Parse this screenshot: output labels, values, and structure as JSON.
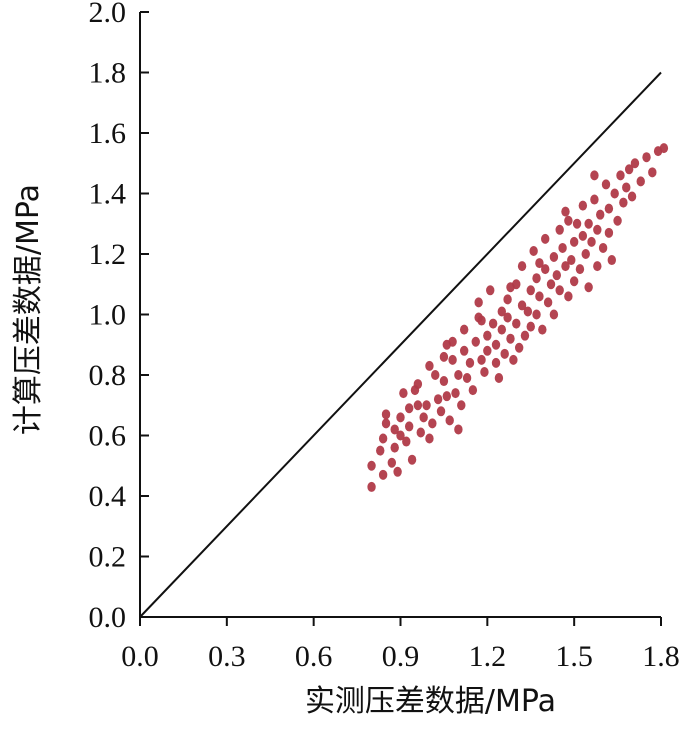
{
  "chart_data": {
    "type": "scatter",
    "xlabel": "实测压差数据/MPa",
    "ylabel": "计算压差数据/MPa",
    "xlim": [
      0,
      1.8
    ],
    "ylim": [
      0,
      2.0
    ],
    "x_ticks": [
      "0.0",
      "0.3",
      "0.6",
      "0.9",
      "1.2",
      "1.5",
      "1.8"
    ],
    "y_ticks": [
      "0.0",
      "0.2",
      "0.4",
      "0.6",
      "0.8",
      "1.0",
      "1.2",
      "1.4",
      "1.6",
      "1.8",
      "2.0"
    ],
    "reference_line": {
      "x": [
        0,
        1.8
      ],
      "y": [
        0,
        1.8
      ]
    },
    "point_color": "#b03a48",
    "grid": false,
    "series": [
      {
        "points": [
          [
            0.8,
            0.43
          ],
          [
            0.8,
            0.5
          ],
          [
            0.83,
            0.55
          ],
          [
            0.84,
            0.47
          ],
          [
            0.84,
            0.59
          ],
          [
            0.85,
            0.64
          ],
          [
            0.85,
            0.67
          ],
          [
            0.87,
            0.51
          ],
          [
            0.88,
            0.56
          ],
          [
            0.89,
            0.48
          ],
          [
            0.9,
            0.6
          ],
          [
            0.9,
            0.66
          ],
          [
            0.91,
            0.74
          ],
          [
            0.92,
            0.58
          ],
          [
            0.93,
            0.63
          ],
          [
            0.93,
            0.69
          ],
          [
            0.94,
            0.52
          ],
          [
            0.95,
            0.75
          ],
          [
            0.96,
            0.77
          ],
          [
            0.97,
            0.61
          ],
          [
            0.98,
            0.66
          ],
          [
            0.99,
            0.7
          ],
          [
            1.0,
            0.83
          ],
          [
            1.0,
            0.59
          ],
          [
            1.01,
            0.64
          ],
          [
            1.02,
            0.8
          ],
          [
            1.03,
            0.72
          ],
          [
            1.04,
            0.68
          ],
          [
            1.05,
            0.78
          ],
          [
            1.05,
            0.86
          ],
          [
            1.06,
            0.73
          ],
          [
            1.07,
            0.65
          ],
          [
            1.08,
            0.85
          ],
          [
            1.08,
            0.91
          ],
          [
            1.09,
            0.74
          ],
          [
            1.1,
            0.8
          ],
          [
            1.1,
            0.62
          ],
          [
            1.11,
            0.7
          ],
          [
            1.12,
            0.88
          ],
          [
            1.12,
            0.95
          ],
          [
            1.13,
            0.79
          ],
          [
            1.14,
            0.84
          ],
          [
            1.15,
            0.75
          ],
          [
            1.16,
            0.91
          ],
          [
            1.17,
            0.99
          ],
          [
            1.17,
            1.04
          ],
          [
            1.18,
            0.85
          ],
          [
            1.19,
            0.81
          ],
          [
            1.2,
            0.93
          ],
          [
            1.2,
            0.88
          ],
          [
            1.21,
            1.08
          ],
          [
            1.22,
            0.97
          ],
          [
            1.23,
            0.84
          ],
          [
            1.23,
            0.9
          ],
          [
            1.24,
            0.79
          ],
          [
            1.25,
            1.01
          ],
          [
            1.25,
            0.95
          ],
          [
            1.26,
            0.87
          ],
          [
            1.27,
            1.05
          ],
          [
            1.27,
            0.99
          ],
          [
            1.28,
            0.92
          ],
          [
            1.29,
            0.85
          ],
          [
            1.3,
            1.1
          ],
          [
            1.3,
            0.97
          ],
          [
            1.31,
            0.89
          ],
          [
            1.32,
            1.03
          ],
          [
            1.32,
            1.16
          ],
          [
            1.33,
            0.93
          ],
          [
            1.34,
            1.01
          ],
          [
            1.35,
            1.08
          ],
          [
            1.35,
            0.96
          ],
          [
            1.36,
            1.21
          ],
          [
            1.37,
            1.12
          ],
          [
            1.37,
            1.0
          ],
          [
            1.38,
            1.06
          ],
          [
            1.39,
            0.95
          ],
          [
            1.4,
            1.15
          ],
          [
            1.4,
            1.25
          ],
          [
            1.41,
            1.04
          ],
          [
            1.42,
            1.1
          ],
          [
            1.43,
            1.19
          ],
          [
            1.43,
            1.0
          ],
          [
            1.44,
            1.13
          ],
          [
            1.45,
            1.28
          ],
          [
            1.45,
            1.08
          ],
          [
            1.46,
            1.22
          ],
          [
            1.47,
            1.16
          ],
          [
            1.48,
            1.06
          ],
          [
            1.48,
            1.31
          ],
          [
            1.49,
            1.18
          ],
          [
            1.5,
            1.24
          ],
          [
            1.5,
            1.11
          ],
          [
            1.51,
            1.3
          ],
          [
            1.52,
            1.15
          ],
          [
            1.53,
            1.26
          ],
          [
            1.53,
            1.36
          ],
          [
            1.54,
            1.2
          ],
          [
            1.55,
            1.09
          ],
          [
            1.55,
            1.3
          ],
          [
            1.56,
            1.24
          ],
          [
            1.57,
            1.38
          ],
          [
            1.58,
            1.16
          ],
          [
            1.58,
            1.28
          ],
          [
            1.59,
            1.33
          ],
          [
            1.6,
            1.22
          ],
          [
            1.61,
            1.43
          ],
          [
            1.62,
            1.35
          ],
          [
            1.62,
            1.27
          ],
          [
            1.63,
            1.18
          ],
          [
            1.64,
            1.4
          ],
          [
            1.65,
            1.31
          ],
          [
            1.66,
            1.46
          ],
          [
            1.67,
            1.37
          ],
          [
            1.68,
            1.42
          ],
          [
            1.69,
            1.48
          ],
          [
            1.7,
            1.39
          ],
          [
            1.71,
            1.5
          ],
          [
            1.73,
            1.44
          ],
          [
            1.75,
            1.52
          ],
          [
            1.77,
            1.47
          ],
          [
            1.79,
            1.54
          ],
          [
            1.81,
            1.55
          ],
          [
            1.57,
            1.46
          ],
          [
            1.47,
            1.34
          ],
          [
            1.38,
            1.17
          ],
          [
            1.28,
            1.09
          ],
          [
            1.18,
            0.98
          ],
          [
            1.06,
            0.9
          ],
          [
            0.96,
            0.7
          ],
          [
            0.88,
            0.62
          ]
        ]
      }
    ]
  }
}
